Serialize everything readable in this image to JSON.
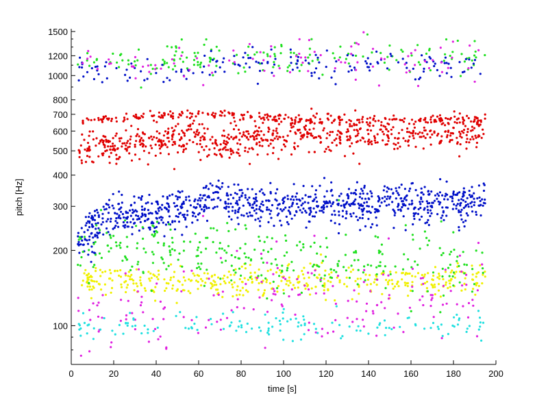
{
  "chart_data": {
    "type": "scatter",
    "title": "",
    "xlabel": "time [s]",
    "ylabel": "pitch [Hz]",
    "xlim": [
      0,
      200
    ],
    "ylim": [
      70,
      1500
    ],
    "y_scale": "log",
    "grid": false,
    "legend": "none",
    "x_ticks": [
      0,
      20,
      40,
      60,
      80,
      100,
      120,
      140,
      160,
      180,
      200
    ],
    "y_ticks": [
      100,
      200,
      300,
      400,
      500,
      600,
      700,
      800,
      1000,
      1200,
      1500
    ],
    "marker_colors": {
      "red": "#e00000",
      "blue": "#0010c8",
      "green": "#20e020",
      "yellow": "#f0f000",
      "magenta": "#e020e0",
      "cyan": "#20e0e0"
    },
    "series": [
      {
        "color": "blue",
        "x_range": [
          3,
          195
        ],
        "trend": [
          [
            3,
            215
          ],
          [
            15,
            270
          ],
          [
            40,
            285
          ],
          [
            60,
            290
          ],
          [
            68,
            340
          ],
          [
            75,
            300
          ],
          [
            100,
            305
          ],
          [
            140,
            305
          ],
          [
            195,
            305
          ]
        ],
        "spread": 0.09
      },
      {
        "color": "red",
        "x_range": [
          3,
          195
        ],
        "trend": [
          [
            3,
            520
          ],
          [
            20,
            520
          ],
          [
            40,
            550
          ],
          [
            60,
            560
          ],
          [
            70,
            520
          ],
          [
            75,
            560
          ],
          [
            100,
            570
          ],
          [
            140,
            580
          ],
          [
            195,
            590
          ]
        ],
        "spread": 0.08
      },
      {
        "color": "red",
        "x_range": [
          5,
          195
        ],
        "trend": [
          [
            5,
            660
          ],
          [
            40,
            690
          ],
          [
            70,
            700
          ],
          [
            100,
            670
          ],
          [
            140,
            665
          ],
          [
            195,
            670
          ]
        ],
        "spread": 0.02
      },
      {
        "color": "yellow",
        "x_range": [
          5,
          195
        ],
        "trend": [
          [
            5,
            150
          ],
          [
            40,
            150
          ],
          [
            80,
            150
          ],
          [
            120,
            150
          ],
          [
            160,
            150
          ],
          [
            195,
            155
          ]
        ],
        "spread": 0.07
      },
      {
        "color": "green",
        "x_range": [
          3,
          195
        ],
        "trend": [
          [
            3,
            210
          ],
          [
            40,
            200
          ],
          [
            80,
            185
          ],
          [
            120,
            180
          ],
          [
            195,
            180
          ]
        ],
        "spread": 0.15
      },
      {
        "color": "green",
        "x_range": [
          3,
          195
        ],
        "trend": [
          [
            3,
            1150
          ],
          [
            60,
            1150
          ],
          [
            100,
            1180
          ],
          [
            195,
            1200
          ]
        ],
        "spread": 0.08
      },
      {
        "color": "blue",
        "x_range": [
          3,
          195
        ],
        "trend": [
          [
            3,
            1050
          ],
          [
            60,
            1080
          ],
          [
            100,
            1100
          ],
          [
            195,
            1120
          ]
        ],
        "spread": 0.07
      },
      {
        "color": "magenta",
        "x_range": [
          3,
          195
        ],
        "trend": [
          [
            3,
            110
          ],
          [
            60,
            120
          ],
          [
            120,
            125
          ],
          [
            195,
            130
          ]
        ],
        "spread": 0.25
      },
      {
        "color": "cyan",
        "x_range": [
          3,
          195
        ],
        "trend": [
          [
            3,
            100
          ],
          [
            60,
            100
          ],
          [
            120,
            100
          ],
          [
            195,
            100
          ]
        ],
        "spread": 0.06
      },
      {
        "color": "magenta",
        "x_range": [
          3,
          195
        ],
        "trend": [
          [
            3,
            1100
          ],
          [
            100,
            1150
          ],
          [
            195,
            1150
          ]
        ],
        "spread": 0.1
      }
    ]
  }
}
